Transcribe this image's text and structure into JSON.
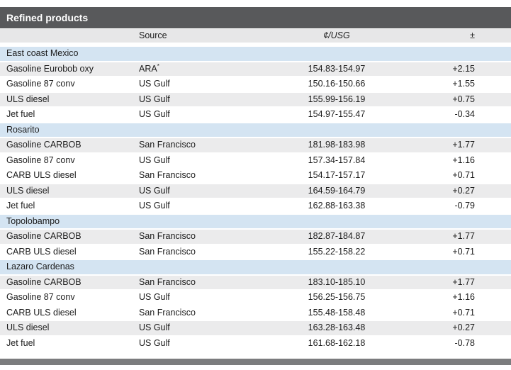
{
  "table": {
    "title": "Refined products",
    "columns": {
      "product": "",
      "source": "Source",
      "price": "¢/USG",
      "change": "±"
    },
    "sections": [
      {
        "name": "East coast Mexico",
        "rows": [
          {
            "product": "Gasoline Eurobob oxy",
            "source": "ARA",
            "source_note": "*",
            "price": "154.83-154.97",
            "change": "+2.15",
            "shaded": true
          },
          {
            "product": "Gasoline 87 conv",
            "source": "US Gulf",
            "source_note": "",
            "price": "150.16-150.66",
            "change": "+1.55",
            "shaded": false
          },
          {
            "product": "ULS diesel",
            "source": "US Gulf",
            "source_note": "",
            "price": "155.99-156.19",
            "change": "+0.75",
            "shaded": true
          },
          {
            "product": "Jet fuel",
            "source": "US Gulf",
            "source_note": "",
            "price": "154.97-155.47",
            "change": "-0.34",
            "shaded": false
          }
        ]
      },
      {
        "name": "Rosarito",
        "rows": [
          {
            "product": "Gasoline CARBOB",
            "source": "San Francisco",
            "source_note": "",
            "price": "181.98-183.98",
            "change": "+1.77",
            "shaded": true
          },
          {
            "product": "Gasoline 87 conv",
            "source": "US Gulf",
            "source_note": "",
            "price": "157.34-157.84",
            "change": "+1.16",
            "shaded": false
          },
          {
            "product": "CARB ULS diesel",
            "source": "San Francisco",
            "source_note": "",
            "price": "154.17-157.17",
            "change": "+0.71",
            "shaded": false
          },
          {
            "product": "ULS diesel",
            "source": "US Gulf",
            "source_note": "",
            "price": "164.59-164.79",
            "change": "+0.27",
            "shaded": true
          },
          {
            "product": "Jet fuel",
            "source": "US Gulf",
            "source_note": "",
            "price": "162.88-163.38",
            "change": "-0.79",
            "shaded": false
          }
        ]
      },
      {
        "name": "Topolobampo",
        "rows": [
          {
            "product": "Gasoline CARBOB",
            "source": "San Francisco",
            "source_note": "",
            "price": "182.87-184.87",
            "change": "+1.77",
            "shaded": true
          },
          {
            "product": "CARB ULS diesel",
            "source": "San Francisco",
            "source_note": "",
            "price": "155.22-158.22",
            "change": "+0.71",
            "shaded": false
          }
        ]
      },
      {
        "name": "Lazaro Cardenas",
        "rows": [
          {
            "product": "Gasoline CARBOB",
            "source": "San Francisco",
            "source_note": "",
            "price": "183.10-185.10",
            "change": "+1.77",
            "shaded": true
          },
          {
            "product": "Gasoline 87 conv",
            "source": "US Gulf",
            "source_note": "",
            "price": "156.25-156.75",
            "change": "+1.16",
            "shaded": false
          },
          {
            "product": "CARB ULS diesel",
            "source": "San Francisco",
            "source_note": "",
            "price": "155.48-158.48",
            "change": "+0.71",
            "shaded": false
          },
          {
            "product": "ULS diesel",
            "source": "US Gulf",
            "source_note": "",
            "price": "163.28-163.48",
            "change": "+0.27",
            "shaded": true
          },
          {
            "product": "Jet fuel",
            "source": "US Gulf",
            "source_note": "",
            "price": "161.68-162.18",
            "change": "-0.78",
            "shaded": false
          }
        ]
      }
    ]
  },
  "colors": {
    "title_bg": "#58595B",
    "header_bg": "#E7E7E8",
    "section_bg": "#D4E4F2",
    "row_shaded_bg": "#EBEBEC",
    "footer_bg": "#7B7C7E",
    "text": "#1C1C1C"
  }
}
